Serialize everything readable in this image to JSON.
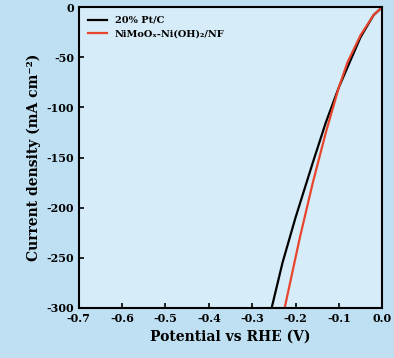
{
  "chart_data": {
    "type": "line",
    "xlabel": "Potential vs RHE (V)",
    "ylabel": "Current density (mA cm⁻²)",
    "xlim": [
      -0.7,
      0.0
    ],
    "xticks": [
      -0.7,
      -0.6,
      -0.5,
      -0.4,
      -0.3,
      -0.2,
      -0.1,
      0.0
    ],
    "ylim": [
      -300,
      0
    ],
    "yticks": [
      -300,
      -250,
      -200,
      -150,
      -100,
      -50,
      0
    ],
    "legend": "upper left",
    "series": [
      {
        "name": "20% Pt/C",
        "color": "#000000",
        "x": [
          0.0,
          -0.02,
          -0.05,
          -0.08,
          -0.1,
          -0.13,
          -0.16,
          -0.2,
          -0.23,
          -0.255
        ],
        "values": [
          0,
          -8,
          -30,
          -60,
          -80,
          -115,
          -155,
          -210,
          -255,
          -300
        ]
      },
      {
        "name": "NiMoOₓ-Ni(OH)₂/NF",
        "color": "#e8452c",
        "x": [
          0.0,
          -0.02,
          -0.05,
          -0.08,
          -0.1,
          -0.13,
          -0.16,
          -0.19,
          -0.21,
          -0.225
        ],
        "values": [
          0,
          -8,
          -28,
          -55,
          -80,
          -125,
          -175,
          -230,
          -270,
          -300
        ]
      }
    ]
  }
}
